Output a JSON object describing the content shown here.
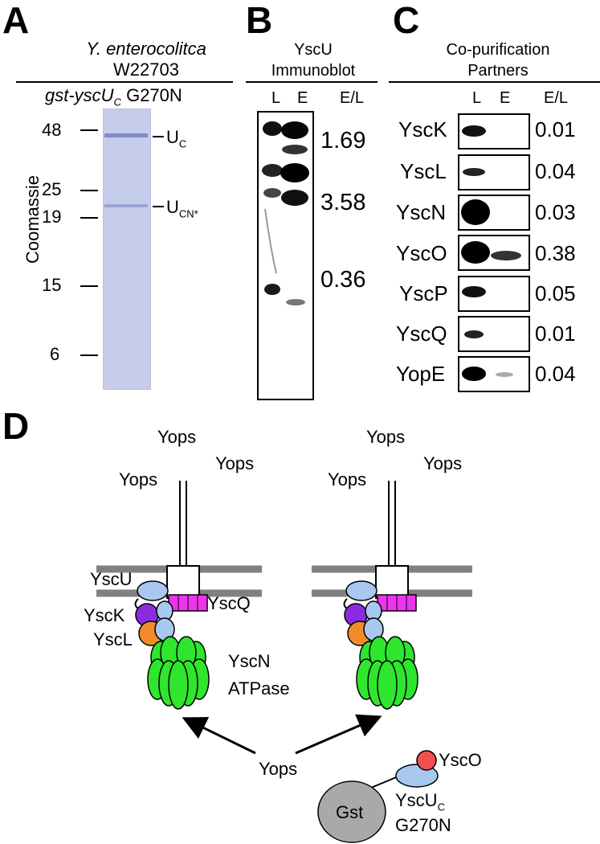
{
  "panel_a": {
    "letter": "A",
    "strain_species": "Y. enterocolitca",
    "strain_id": "W22703",
    "construct_prefix": "gst-yscU",
    "construct_sub": "C",
    "construct_mutation": "G270N",
    "y_axis_label": "Coomassie",
    "markers": [
      "48",
      "25",
      "19",
      "15",
      "6"
    ],
    "band_uc_main": "U",
    "band_uc_sub": "C",
    "band_ucn_main": "U",
    "band_ucn_sub": "CN*",
    "gel_color": "#c6cdec"
  },
  "panel_b": {
    "letter": "B",
    "title_line1": "YscU",
    "title_line2": "Immunoblot",
    "lane_l": "L",
    "lane_e": "E",
    "ratio_header": "E/L",
    "ratios": [
      "1.69",
      "3.58",
      "0.36"
    ]
  },
  "panel_c": {
    "letter": "C",
    "title_line1": "Co-purification",
    "title_line2": "Partners",
    "lane_l": "L",
    "lane_e": "E",
    "ratio_header": "E/L",
    "rows": [
      {
        "protein": "YscK",
        "ratio": "0.01"
      },
      {
        "protein": "YscL",
        "ratio": "0.04"
      },
      {
        "protein": "YscN",
        "ratio": "0.03"
      },
      {
        "protein": "YscO",
        "ratio": "0.38"
      },
      {
        "protein": "YscP",
        "ratio": "0.05"
      },
      {
        "protein": "YscQ",
        "ratio": "0.01"
      },
      {
        "protein": "YopE",
        "ratio": "0.04"
      }
    ]
  },
  "panel_d": {
    "letter": "D",
    "yops": "Yops",
    "labels": {
      "yscu": "YscU",
      "ysck": "YscK",
      "yscl": "YscL",
      "yscq": "YscQ",
      "yscn": "YscN",
      "atpase": "ATPase",
      "gst": "Gst",
      "ysco": "YscO",
      "yscuc_main": "YscU",
      "yscuc_sub": "C",
      "g270n": "G270N"
    },
    "colors": {
      "yscu": "#a8c8f0",
      "ysck": "#8a2be2",
      "yscl": "#f28c28",
      "yscq": "#ee33ee",
      "yscn": "#2ee62e",
      "gst": "#a9a9a9",
      "ysco": "#f05050",
      "membrane": "#808080"
    }
  }
}
